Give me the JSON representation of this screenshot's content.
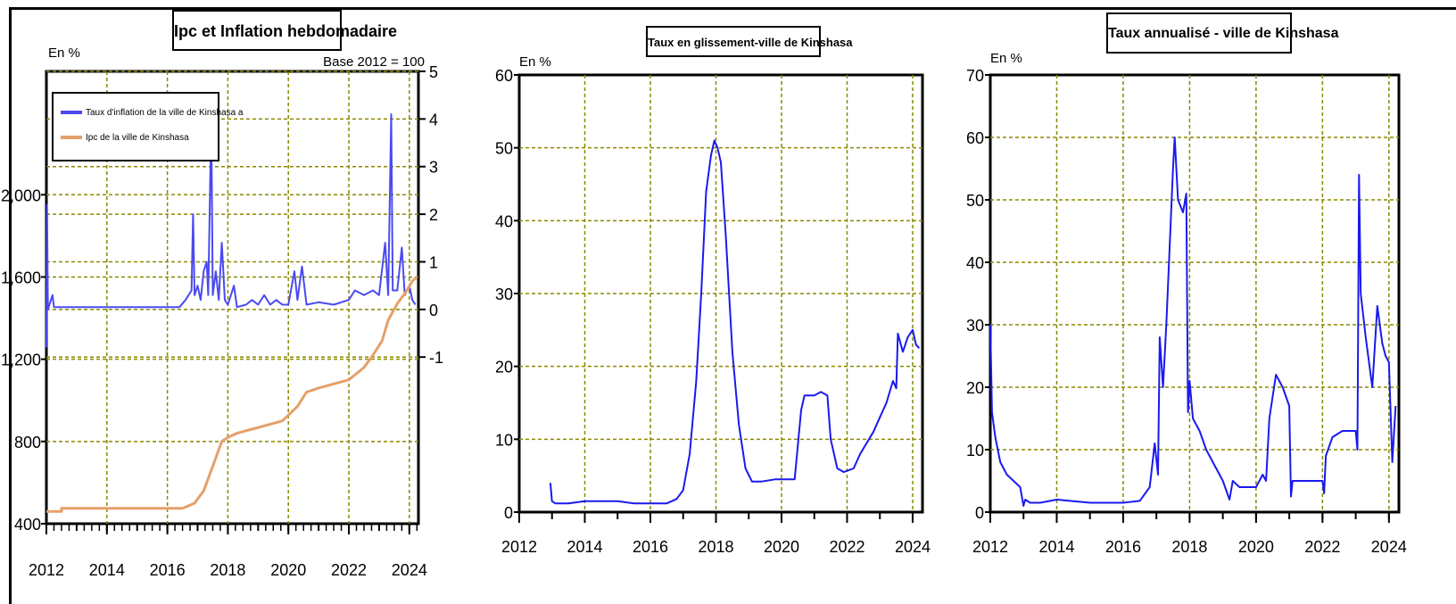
{
  "chart_data": [
    {
      "type": "line",
      "title": "Ipc et Inflation hebdomadaire",
      "left_axis_unit": "En %",
      "base_note": "Base 2012 = 100",
      "x_ticks": [
        "2012",
        "2014",
        "2016",
        "2018",
        "2020",
        "2022",
        "2024"
      ],
      "xlim": [
        2012,
        2024.3
      ],
      "y_left": {
        "ticks": [
          "400",
          "800",
          "1,200",
          "1,600",
          "2,000"
        ],
        "ylim": [
          400,
          2600
        ]
      },
      "y_right": {
        "ticks": [
          "-1",
          "0",
          "1",
          "2",
          "3",
          "4",
          "5"
        ],
        "ylim": [
          -4.5,
          5
        ]
      },
      "grid": true,
      "legend_position": "top-left",
      "series": [
        {
          "name": "Taux d'inflation de la ville de Kinshasa a",
          "axis": "right",
          "color": "#4a4af0",
          "points": [
            [
              2012.0,
              -0.8
            ],
            [
              2012.02,
              2.2
            ],
            [
              2012.05,
              0.0
            ],
            [
              2012.2,
              0.3
            ],
            [
              2012.25,
              0.05
            ],
            [
              2013.0,
              0.05
            ],
            [
              2014.0,
              0.05
            ],
            [
              2015.0,
              0.05
            ],
            [
              2016.0,
              0.05
            ],
            [
              2016.4,
              0.05
            ],
            [
              2016.6,
              0.2
            ],
            [
              2016.8,
              0.4
            ],
            [
              2016.85,
              2.0
            ],
            [
              2016.9,
              0.3
            ],
            [
              2017.0,
              0.5
            ],
            [
              2017.1,
              0.2
            ],
            [
              2017.2,
              0.8
            ],
            [
              2017.3,
              1.0
            ],
            [
              2017.35,
              0.3
            ],
            [
              2017.45,
              4.0
            ],
            [
              2017.5,
              0.3
            ],
            [
              2017.6,
              0.8
            ],
            [
              2017.7,
              0.2
            ],
            [
              2017.8,
              1.4
            ],
            [
              2017.9,
              0.2
            ],
            [
              2018.0,
              0.1
            ],
            [
              2018.2,
              0.5
            ],
            [
              2018.3,
              0.05
            ],
            [
              2018.6,
              0.1
            ],
            [
              2018.8,
              0.2
            ],
            [
              2019.0,
              0.1
            ],
            [
              2019.2,
              0.3
            ],
            [
              2019.4,
              0.1
            ],
            [
              2019.6,
              0.2
            ],
            [
              2019.8,
              0.1
            ],
            [
              2020.0,
              0.1
            ],
            [
              2020.2,
              0.8
            ],
            [
              2020.3,
              0.2
            ],
            [
              2020.45,
              0.9
            ],
            [
              2020.6,
              0.1
            ],
            [
              2021.0,
              0.15
            ],
            [
              2021.5,
              0.1
            ],
            [
              2022.0,
              0.2
            ],
            [
              2022.2,
              0.4
            ],
            [
              2022.5,
              0.3
            ],
            [
              2022.8,
              0.4
            ],
            [
              2023.0,
              0.3
            ],
            [
              2023.2,
              1.4
            ],
            [
              2023.3,
              0.3
            ],
            [
              2023.4,
              4.1
            ],
            [
              2023.45,
              0.4
            ],
            [
              2023.6,
              0.4
            ],
            [
              2023.75,
              1.3
            ],
            [
              2023.85,
              0.3
            ],
            [
              2024.0,
              0.5
            ],
            [
              2024.1,
              0.2
            ],
            [
              2024.2,
              0.1
            ]
          ]
        },
        {
          "name": "Ipc de la ville de Kinshasa",
          "axis": "left",
          "color": "#e5a06a",
          "points": [
            [
              2012.0,
              460
            ],
            [
              2012.5,
              460
            ],
            [
              2012.5,
              475
            ],
            [
              2014.0,
              475
            ],
            [
              2016.0,
              475
            ],
            [
              2016.5,
              475
            ],
            [
              2016.9,
              500
            ],
            [
              2017.2,
              560
            ],
            [
              2017.5,
              680
            ],
            [
              2017.8,
              800
            ],
            [
              2018.0,
              820
            ],
            [
              2018.3,
              840
            ],
            [
              2018.8,
              860
            ],
            [
              2019.3,
              880
            ],
            [
              2019.8,
              900
            ],
            [
              2020.3,
              970
            ],
            [
              2020.6,
              1040
            ],
            [
              2021.0,
              1060
            ],
            [
              2021.5,
              1080
            ],
            [
              2022.0,
              1100
            ],
            [
              2022.5,
              1160
            ],
            [
              2022.8,
              1220
            ],
            [
              2023.1,
              1290
            ],
            [
              2023.3,
              1390
            ],
            [
              2023.6,
              1470
            ],
            [
              2023.9,
              1530
            ],
            [
              2024.1,
              1580
            ],
            [
              2024.25,
              1600
            ]
          ]
        }
      ]
    },
    {
      "type": "line",
      "title": "Taux en glissement-ville de Kinshasa",
      "ylabel": "En %",
      "x_ticks": [
        "2012",
        "2014",
        "2016",
        "2018",
        "2020",
        "2022",
        "2024"
      ],
      "xlim": [
        2012,
        2024.3
      ],
      "y_ticks": [
        "0",
        "10",
        "20",
        "30",
        "40",
        "50",
        "60"
      ],
      "ylim": [
        0,
        60
      ],
      "grid": true,
      "series": [
        {
          "color": "#1a1aee",
          "points": [
            [
              2012.95,
              4
            ],
            [
              2013.0,
              1.5
            ],
            [
              2013.1,
              1.2
            ],
            [
              2013.5,
              1.2
            ],
            [
              2014.0,
              1.5
            ],
            [
              2015.0,
              1.5
            ],
            [
              2015.5,
              1.2
            ],
            [
              2016.0,
              1.2
            ],
            [
              2016.5,
              1.2
            ],
            [
              2016.8,
              1.8
            ],
            [
              2017.0,
              3
            ],
            [
              2017.2,
              8
            ],
            [
              2017.4,
              18
            ],
            [
              2017.55,
              30
            ],
            [
              2017.7,
              44
            ],
            [
              2017.85,
              49
            ],
            [
              2017.95,
              51
            ],
            [
              2018.05,
              50
            ],
            [
              2018.15,
              48
            ],
            [
              2018.3,
              38
            ],
            [
              2018.5,
              22
            ],
            [
              2018.7,
              12
            ],
            [
              2018.9,
              6
            ],
            [
              2019.1,
              4.2
            ],
            [
              2019.4,
              4.2
            ],
            [
              2019.8,
              4.5
            ],
            [
              2020.0,
              4.5
            ],
            [
              2020.4,
              4.5
            ],
            [
              2020.6,
              14
            ],
            [
              2020.7,
              16
            ],
            [
              2021.0,
              16
            ],
            [
              2021.2,
              16.5
            ],
            [
              2021.4,
              16
            ],
            [
              2021.5,
              10
            ],
            [
              2021.7,
              6
            ],
            [
              2021.9,
              5.5
            ],
            [
              2022.2,
              6
            ],
            [
              2022.4,
              8
            ],
            [
              2022.8,
              11
            ],
            [
              2023.0,
              13
            ],
            [
              2023.2,
              15
            ],
            [
              2023.4,
              18
            ],
            [
              2023.5,
              17
            ],
            [
              2023.55,
              24.5
            ],
            [
              2023.7,
              22
            ],
            [
              2023.85,
              24
            ],
            [
              2024.0,
              25
            ],
            [
              2024.1,
              23
            ],
            [
              2024.2,
              22.5
            ]
          ]
        }
      ]
    },
    {
      "type": "line",
      "title": "Taux annualisé - ville de Kinshasa",
      "ylabel": "En %",
      "x_ticks": [
        "2012",
        "2014",
        "2016",
        "2018",
        "2020",
        "2022",
        "2024"
      ],
      "xlim": [
        2012,
        2024.3
      ],
      "y_ticks": [
        "0",
        "10",
        "20",
        "30",
        "40",
        "50",
        "60",
        "70"
      ],
      "ylim": [
        0,
        70
      ],
      "grid": true,
      "series": [
        {
          "color": "#1a1aee",
          "points": [
            [
              2012.0,
              30
            ],
            [
              2012.05,
              16
            ],
            [
              2012.15,
              12
            ],
            [
              2012.3,
              8
            ],
            [
              2012.5,
              6
            ],
            [
              2012.7,
              5
            ],
            [
              2012.9,
              4
            ],
            [
              2013.0,
              1
            ],
            [
              2013.05,
              2
            ],
            [
              2013.2,
              1.5
            ],
            [
              2013.5,
              1.5
            ],
            [
              2014.0,
              2
            ],
            [
              2015.0,
              1.5
            ],
            [
              2015.5,
              1.5
            ],
            [
              2016.0,
              1.5
            ],
            [
              2016.5,
              1.8
            ],
            [
              2016.8,
              4
            ],
            [
              2016.95,
              11
            ],
            [
              2017.05,
              6
            ],
            [
              2017.1,
              28
            ],
            [
              2017.2,
              20
            ],
            [
              2017.3,
              30
            ],
            [
              2017.5,
              55
            ],
            [
              2017.55,
              60
            ],
            [
              2017.65,
              50
            ],
            [
              2017.8,
              48
            ],
            [
              2017.9,
              51
            ],
            [
              2017.95,
              16
            ],
            [
              2018.0,
              21
            ],
            [
              2018.1,
              15
            ],
            [
              2018.3,
              13
            ],
            [
              2018.5,
              10
            ],
            [
              2018.8,
              7
            ],
            [
              2019.0,
              5
            ],
            [
              2019.2,
              2
            ],
            [
              2019.3,
              5
            ],
            [
              2019.5,
              4
            ],
            [
              2020.0,
              4
            ],
            [
              2020.2,
              6
            ],
            [
              2020.3,
              5
            ],
            [
              2020.4,
              15
            ],
            [
              2020.6,
              22
            ],
            [
              2020.8,
              20
            ],
            [
              2021.0,
              17
            ],
            [
              2021.05,
              2.5
            ],
            [
              2021.1,
              5
            ],
            [
              2021.5,
              5
            ],
            [
              2022.0,
              5
            ],
            [
              2022.05,
              3
            ],
            [
              2022.1,
              9
            ],
            [
              2022.3,
              12
            ],
            [
              2022.6,
              13
            ],
            [
              2023.0,
              13
            ],
            [
              2023.05,
              10
            ],
            [
              2023.1,
              54
            ],
            [
              2023.15,
              35
            ],
            [
              2023.3,
              28
            ],
            [
              2023.5,
              20
            ],
            [
              2023.65,
              33
            ],
            [
              2023.8,
              27
            ],
            [
              2023.9,
              25
            ],
            [
              2024.0,
              24
            ],
            [
              2024.1,
              8
            ],
            [
              2024.2,
              17
            ]
          ]
        }
      ]
    }
  ]
}
